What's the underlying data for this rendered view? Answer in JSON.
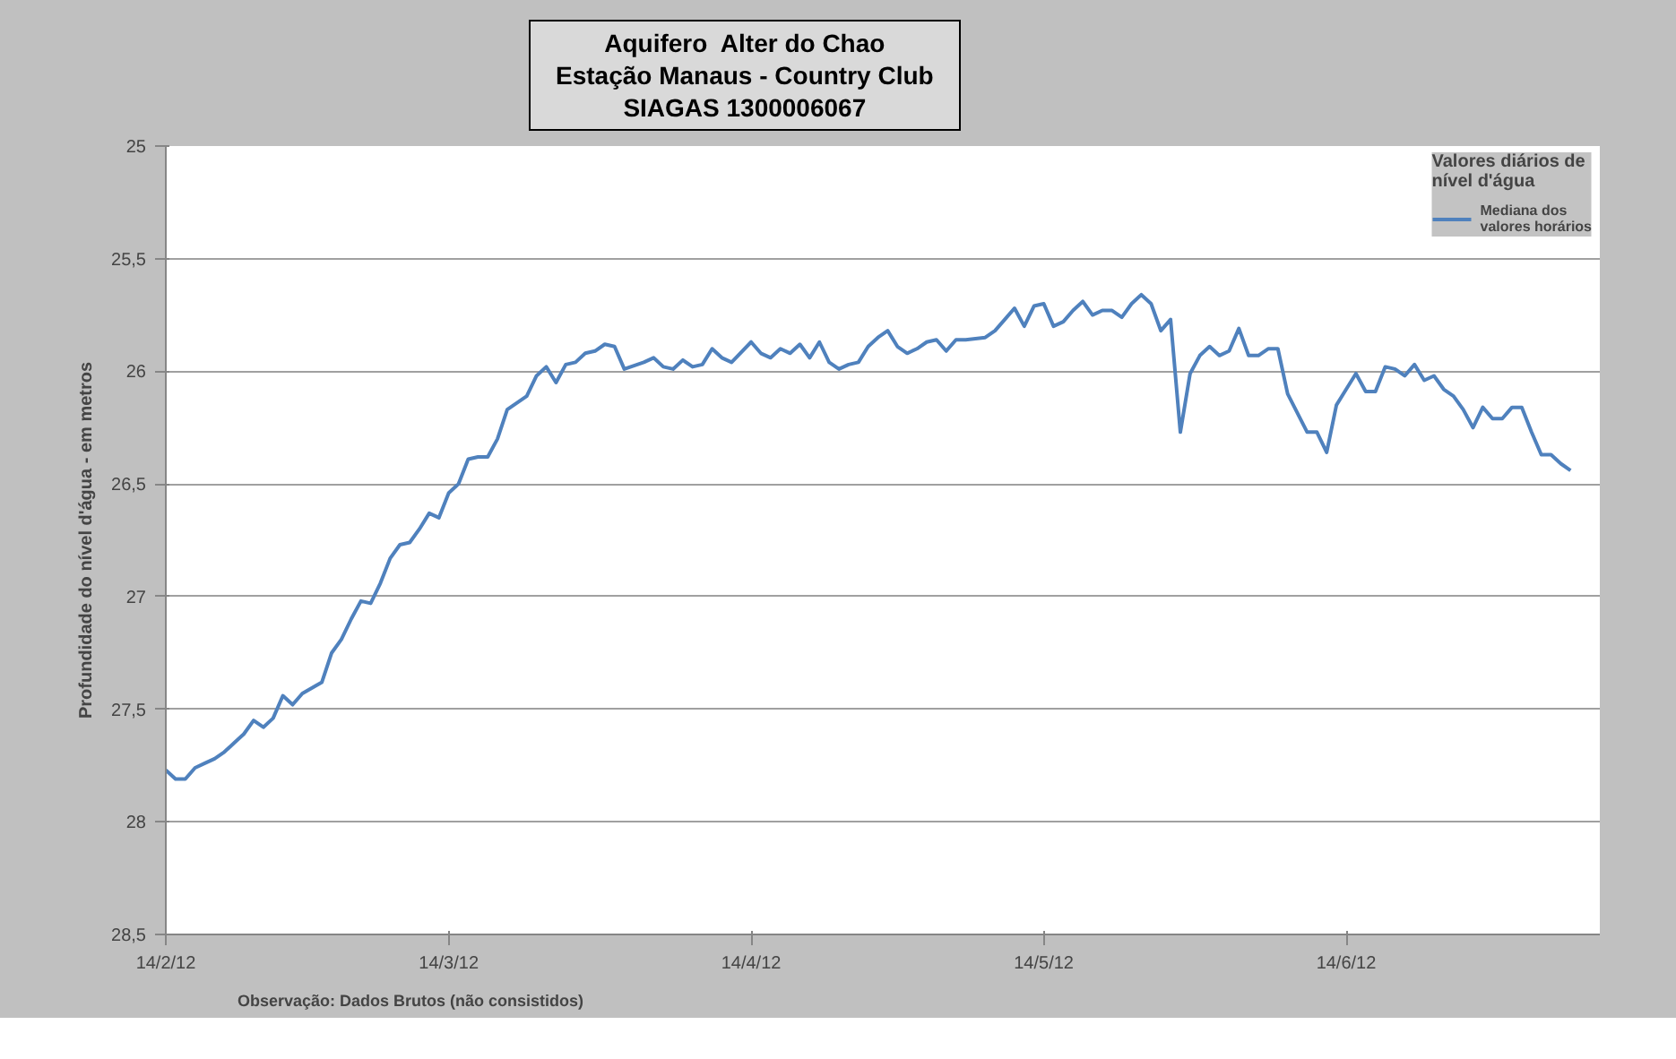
{
  "chart_data": {
    "type": "line",
    "title": "Aquifero  Alter do Chao\nEstação Manaus - Country Club\nSIAGAS 1300006067",
    "ylabel": "Profundidade do nível d'água - em metros",
    "legend_title": "Valores diários de nível d'água",
    "annotations": [
      "Observação: Dados Brutos (não consistidos)"
    ],
    "xlim": [
      "2012-02-14",
      "2012-07-10"
    ],
    "xticks": [
      {
        "value": "2012-02-14",
        "label": "14/2/12"
      },
      {
        "value": "2012-03-14",
        "label": "14/3/12"
      },
      {
        "value": "2012-04-14",
        "label": "14/4/12"
      },
      {
        "value": "2012-05-14",
        "label": "14/5/12"
      },
      {
        "value": "2012-06-14",
        "label": "14/6/12"
      }
    ],
    "ylim": [
      28.5,
      25
    ],
    "yticks": [
      25,
      {
        "value": 25.5,
        "label": "25,5"
      },
      26,
      {
        "value": 26.5,
        "label": "26,5"
      },
      27,
      {
        "value": 27.5,
        "label": "27,5"
      },
      28,
      {
        "value": 28.5,
        "label": "28,5"
      }
    ],
    "grid": "y",
    "legend": "top right",
    "marker": "none",
    "line_style": "solid",
    "series": [
      {
        "name": "Mediana dos valores horários",
        "color": "#4f81bd",
        "x": [
          "2012-02-14",
          "2012-02-15",
          "2012-02-16",
          "2012-02-17",
          "2012-02-18",
          "2012-02-19",
          "2012-02-20",
          "2012-02-21",
          "2012-02-22",
          "2012-02-23",
          "2012-02-24",
          "2012-02-25",
          "2012-02-26",
          "2012-02-27",
          "2012-02-28",
          "2012-03-01",
          "2012-03-02",
          "2012-03-03",
          "2012-03-04",
          "2012-03-05",
          "2012-03-06",
          "2012-03-07",
          "2012-03-08",
          "2012-03-09",
          "2012-03-10",
          "2012-03-11",
          "2012-03-12",
          "2012-03-13",
          "2012-03-14",
          "2012-03-15",
          "2012-03-16",
          "2012-03-17",
          "2012-03-18",
          "2012-03-19",
          "2012-03-20",
          "2012-03-21",
          "2012-03-22",
          "2012-03-23",
          "2012-03-24",
          "2012-03-25",
          "2012-03-26",
          "2012-03-27",
          "2012-03-28",
          "2012-03-29",
          "2012-03-30",
          "2012-03-31",
          "2012-04-01",
          "2012-04-03",
          "2012-04-04",
          "2012-04-05",
          "2012-04-06",
          "2012-04-07",
          "2012-04-08",
          "2012-04-09",
          "2012-04-10",
          "2012-04-11",
          "2012-04-12",
          "2012-04-14",
          "2012-04-15",
          "2012-04-16",
          "2012-04-17",
          "2012-04-18",
          "2012-04-19",
          "2012-04-20",
          "2012-04-21",
          "2012-04-22",
          "2012-04-23",
          "2012-04-24",
          "2012-04-25",
          "2012-04-26",
          "2012-04-27",
          "2012-04-28",
          "2012-04-29",
          "2012-04-30",
          "2012-05-01",
          "2012-05-02",
          "2012-05-03",
          "2012-05-04",
          "2012-05-05",
          "2012-05-06",
          "2012-05-08",
          "2012-05-09",
          "2012-05-10",
          "2012-05-11",
          "2012-05-12",
          "2012-05-13",
          "2012-05-14",
          "2012-05-15",
          "2012-05-16",
          "2012-05-17",
          "2012-05-18",
          "2012-05-19",
          "2012-05-20",
          "2012-05-21",
          "2012-05-22",
          "2012-05-23",
          "2012-05-24",
          "2012-05-25",
          "2012-05-26",
          "2012-05-27",
          "2012-05-28",
          "2012-05-29",
          "2012-05-30",
          "2012-05-31",
          "2012-06-01",
          "2012-06-02",
          "2012-06-03",
          "2012-06-04",
          "2012-06-05",
          "2012-06-06",
          "2012-06-07",
          "2012-06-08",
          "2012-06-10",
          "2012-06-11",
          "2012-06-12",
          "2012-06-13",
          "2012-06-14",
          "2012-06-15",
          "2012-06-16",
          "2012-06-17",
          "2012-06-18",
          "2012-06-19",
          "2012-06-20",
          "2012-06-21",
          "2012-06-22",
          "2012-06-23",
          "2012-06-24",
          "2012-06-25",
          "2012-06-26",
          "2012-06-27",
          "2012-06-28",
          "2012-06-29",
          "2012-06-30",
          "2012-07-01",
          "2012-07-02",
          "2012-07-03",
          "2012-07-04",
          "2012-07-05",
          "2012-07-06",
          "2012-07-07"
        ],
        "values": [
          27.77,
          27.81,
          27.81,
          27.76,
          27.74,
          27.72,
          27.69,
          27.65,
          27.61,
          27.55,
          27.58,
          27.54,
          27.44,
          27.48,
          27.43,
          27.38,
          27.25,
          27.19,
          27.1,
          27.02,
          27.03,
          26.94,
          26.83,
          26.77,
          26.76,
          26.7,
          26.63,
          26.65,
          26.54,
          26.5,
          26.39,
          26.38,
          26.38,
          26.3,
          26.17,
          26.14,
          26.11,
          26.02,
          25.98,
          26.05,
          25.97,
          25.96,
          25.92,
          25.91,
          25.88,
          25.89,
          25.99,
          25.96,
          25.94,
          25.98,
          25.99,
          25.95,
          25.98,
          25.97,
          25.9,
          25.94,
          25.96,
          25.87,
          25.92,
          25.94,
          25.9,
          25.92,
          25.88,
          25.94,
          25.87,
          25.96,
          25.99,
          25.97,
          25.96,
          25.89,
          25.85,
          25.82,
          25.89,
          25.92,
          25.9,
          25.87,
          25.86,
          25.91,
          25.86,
          25.86,
          25.85,
          25.82,
          25.77,
          25.72,
          25.8,
          25.71,
          25.7,
          25.8,
          25.78,
          25.73,
          25.69,
          25.75,
          25.73,
          25.73,
          25.76,
          25.7,
          25.66,
          25.7,
          25.82,
          25.77,
          26.27,
          26.01,
          25.93,
          25.89,
          25.93,
          25.91,
          25.81,
          25.93,
          25.93,
          25.9,
          25.9,
          26.1,
          26.27,
          26.27,
          26.36,
          26.15,
          26.08,
          26.01,
          26.09,
          26.09,
          25.98,
          25.99,
          26.02,
          25.97,
          26.04,
          26.02,
          26.08,
          26.11,
          26.17,
          26.25,
          26.16,
          26.21,
          26.21,
          26.16,
          26.16,
          26.27,
          26.37,
          26.37,
          26.41,
          26.44
        ]
      }
    ]
  }
}
